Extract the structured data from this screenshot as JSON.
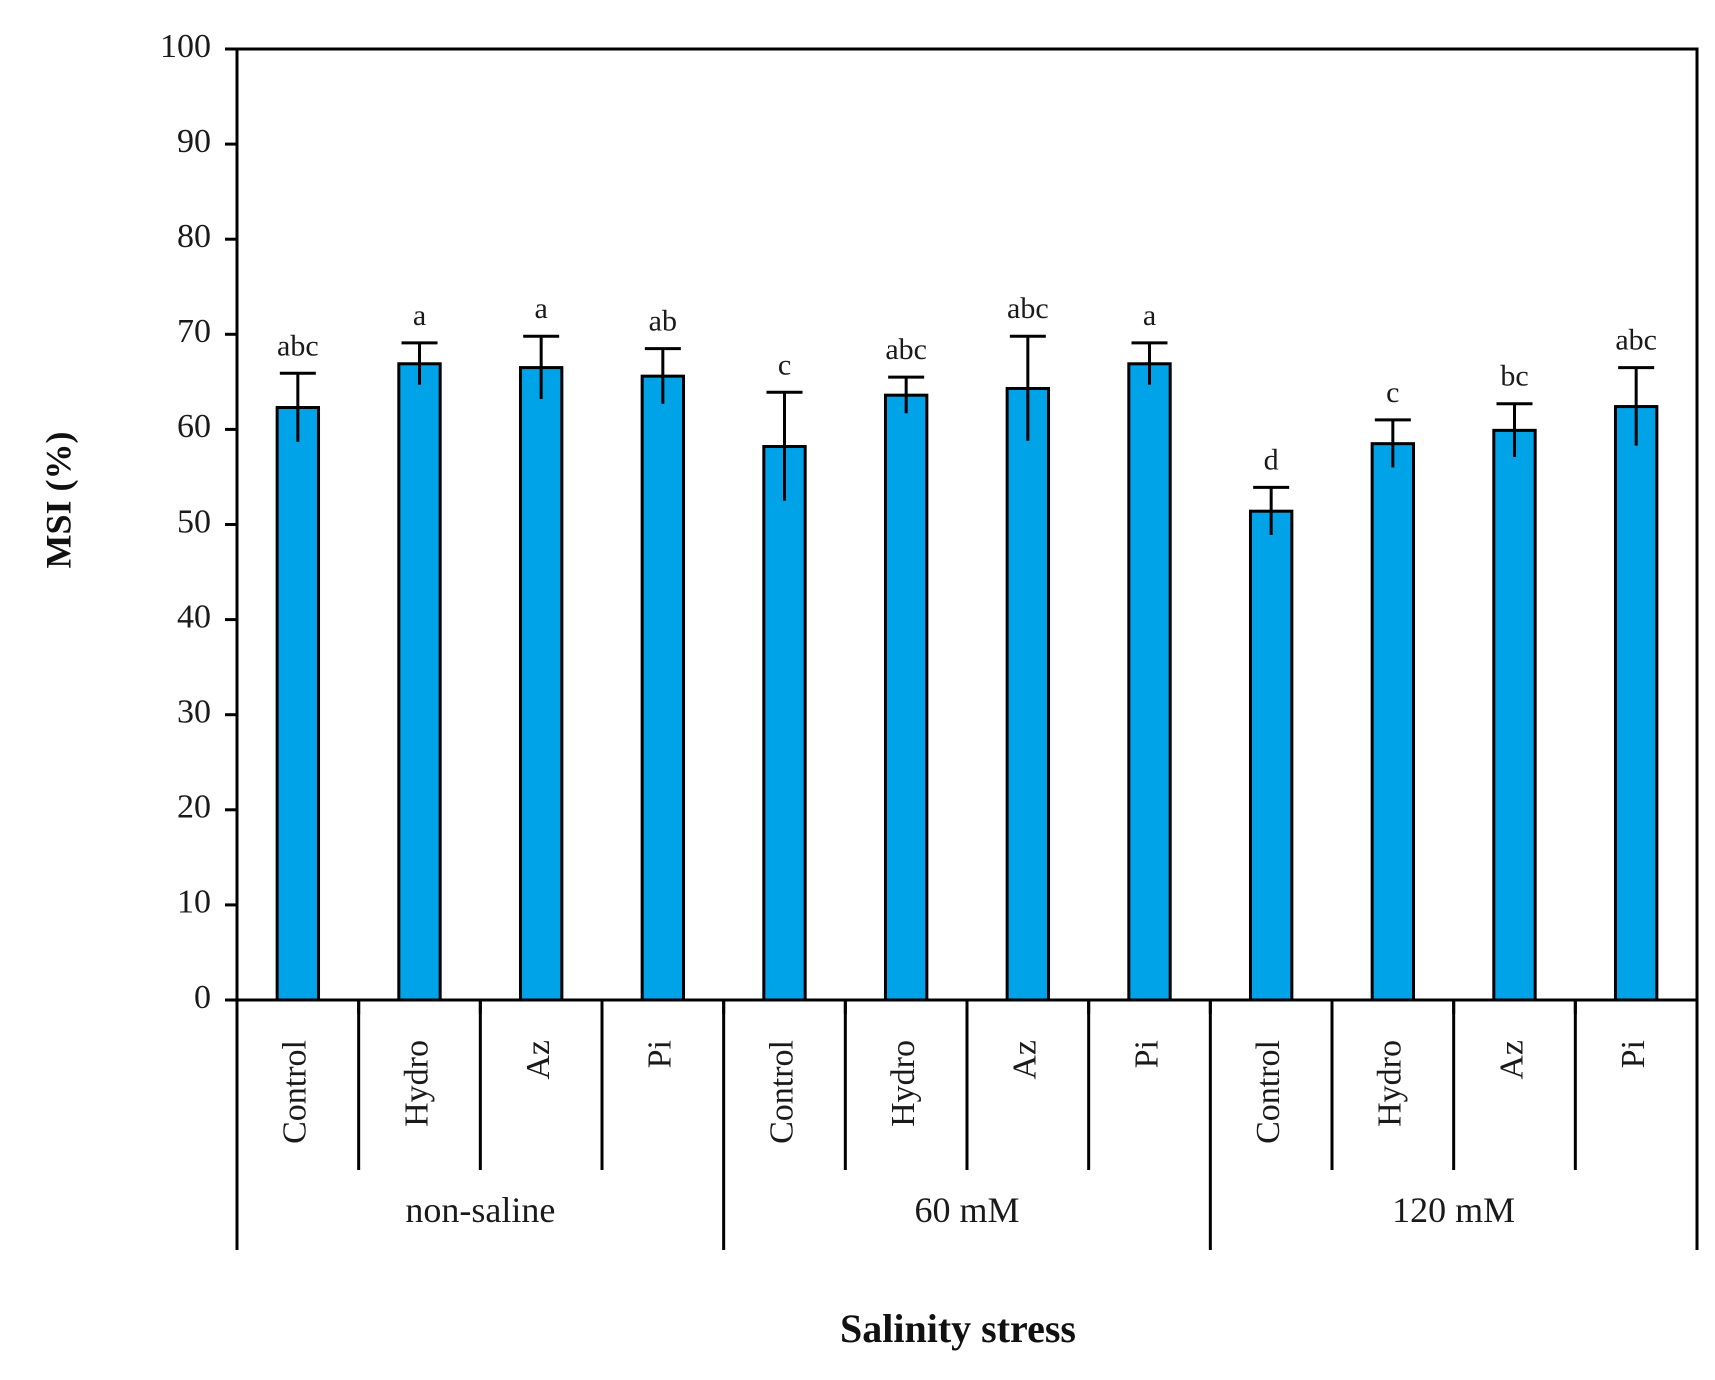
{
  "chart_data": {
    "type": "bar",
    "title": "",
    "xlabel": "Salinity stress",
    "ylabel": "MSI (%)",
    "ylim": [
      0,
      100
    ],
    "yticks": [
      0,
      10,
      20,
      30,
      40,
      50,
      60,
      70,
      80,
      90,
      100
    ],
    "bar_color": "#00a2e8",
    "bar_edge_color": "#000000",
    "groups": [
      {
        "name": "non-saline",
        "bars": [
          {
            "label": "Control",
            "value": 62.3,
            "error": 3.6,
            "letter": "abc"
          },
          {
            "label": "Hydro",
            "value": 66.9,
            "error": 2.2,
            "letter": "a"
          },
          {
            "label": "Az",
            "value": 66.5,
            "error": 3.3,
            "letter": "a"
          },
          {
            "label": "Pi",
            "value": 65.6,
            "error": 2.9,
            "letter": "ab"
          }
        ]
      },
      {
        "name": "60 mM",
        "bars": [
          {
            "label": "Control",
            "value": 58.2,
            "error": 5.7,
            "letter": "c"
          },
          {
            "label": "Hydro",
            "value": 63.6,
            "error": 1.9,
            "letter": "abc"
          },
          {
            "label": "Az",
            "value": 64.3,
            "error": 5.5,
            "letter": "abc"
          },
          {
            "label": "Pi",
            "value": 66.9,
            "error": 2.2,
            "letter": "a"
          }
        ]
      },
      {
        "name": "120 mM",
        "bars": [
          {
            "label": "Control",
            "value": 51.4,
            "error": 2.5,
            "letter": "d"
          },
          {
            "label": "Hydro",
            "value": 58.5,
            "error": 2.5,
            "letter": "c"
          },
          {
            "label": "Az",
            "value": 59.9,
            "error": 2.8,
            "letter": "bc"
          },
          {
            "label": "Pi",
            "value": 62.4,
            "error": 4.1,
            "letter": "abc"
          }
        ]
      }
    ]
  }
}
